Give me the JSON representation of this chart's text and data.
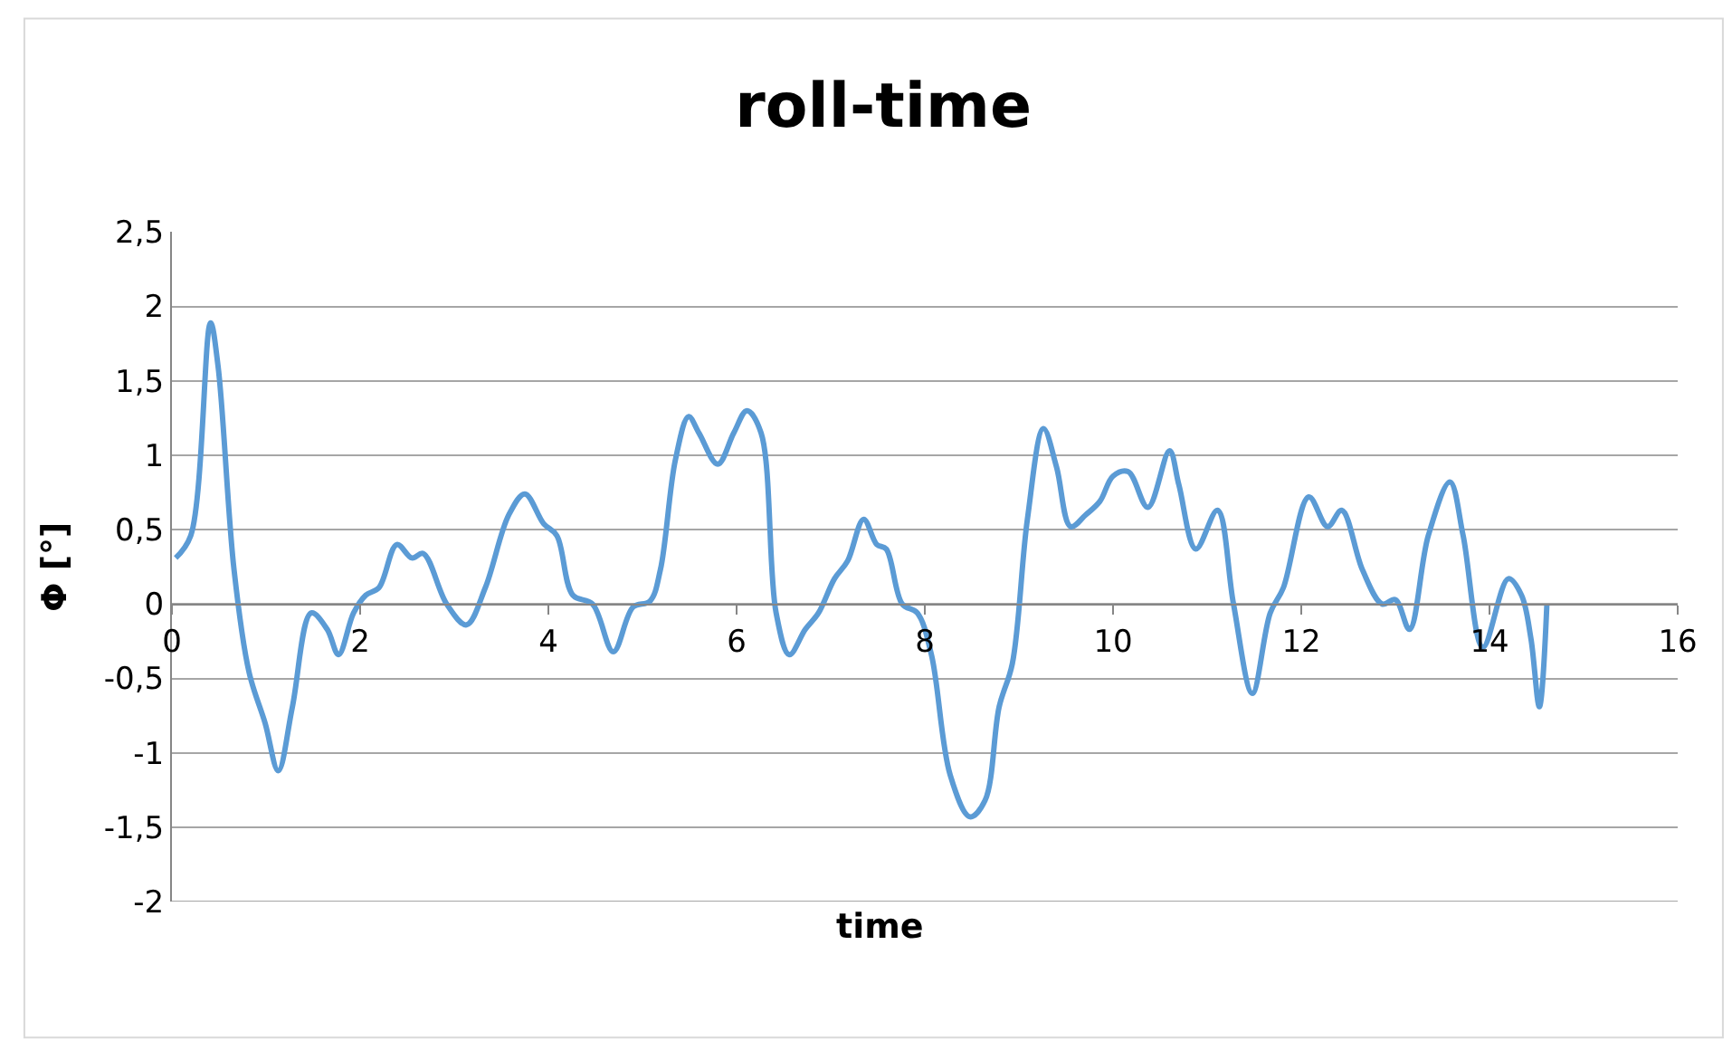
{
  "chart_data": {
    "type": "line",
    "title": "roll-time",
    "xlabel": "time",
    "ylabel": "Φ [°]",
    "xlim": [
      0,
      16
    ],
    "xticks": [
      0,
      2,
      4,
      6,
      8,
      10,
      12,
      14,
      16
    ],
    "ylim": [
      -2,
      2.5
    ],
    "yticks": [
      {
        "value": -2,
        "label": "-2"
      },
      {
        "value": -1.5,
        "label": "-1,5"
      },
      {
        "value": -1,
        "label": "-1"
      },
      {
        "value": -0.5,
        "label": "-0,5"
      },
      {
        "value": 0,
        "label": "0"
      },
      {
        "value": 0.5,
        "label": "0,5"
      },
      {
        "value": 1,
        "label": "1"
      },
      {
        "value": 1.5,
        "label": "1,5"
      },
      {
        "value": 2,
        "label": "2"
      },
      {
        "value": 2.5,
        "label": "2,5"
      }
    ],
    "grid": "y",
    "marker": "none",
    "line_style": "solid",
    "series": [
      {
        "color": "#5b9bd5",
        "x": [
          0.04,
          0.2,
          0.41,
          0.49,
          0.66,
          0.82,
          0.99,
          1.13,
          1.28,
          1.48,
          1.65,
          1.77,
          1.93,
          2.06,
          2.2,
          2.39,
          2.55,
          2.67,
          2.92,
          3.13,
          3.33,
          3.58,
          3.75,
          3.95,
          4.09,
          4.26,
          4.47,
          4.69,
          4.9,
          5.08,
          5.19,
          5.35,
          5.49,
          5.6,
          5.8,
          5.97,
          6.11,
          6.26,
          6.42,
          6.56,
          6.73,
          6.87,
          7.04,
          7.18,
          7.35,
          7.49,
          7.59,
          7.76,
          7.92,
          8.07,
          8.27,
          8.48,
          8.64,
          8.79,
          8.93,
          9.09,
          9.26,
          9.4,
          9.55,
          9.71,
          9.86,
          10.0,
          10.16,
          10.37,
          10.6,
          10.7,
          10.88,
          11.11,
          11.28,
          11.48,
          11.67,
          11.81,
          12.08,
          12.28,
          12.43,
          12.65,
          12.86,
          13.0,
          13.15,
          13.35,
          13.58,
          13.72,
          13.93,
          14.2,
          14.34,
          14.44,
          14.53,
          14.61
        ],
        "values": [
          0.31,
          0.46,
          1.89,
          1.6,
          0.23,
          -0.46,
          -0.8,
          -1.12,
          -0.69,
          -0.06,
          -0.17,
          -0.34,
          -0.06,
          0.06,
          0.11,
          0.4,
          0.31,
          0.34,
          0,
          -0.14,
          0.11,
          0.6,
          0.74,
          0.54,
          0.46,
          0.06,
          0,
          -0.32,
          -0.02,
          0.02,
          0.23,
          0.97,
          1.26,
          1.15,
          0.94,
          1.15,
          1.3,
          1.15,
          -0.06,
          -0.34,
          -0.17,
          -0.06,
          0.17,
          0.29,
          0.57,
          0.4,
          0.37,
          0,
          -0.06,
          -0.34,
          -1.15,
          -1.43,
          -1.32,
          -0.69,
          -0.4,
          0.57,
          1.18,
          0.92,
          0.52,
          0.6,
          0.69,
          0.86,
          0.89,
          0.65,
          1.03,
          0.8,
          0.37,
          0.63,
          0,
          -0.6,
          -0.06,
          0.11,
          0.72,
          0.52,
          0.63,
          0.23,
          0,
          0.03,
          -0.17,
          0.46,
          0.82,
          0.46,
          -0.29,
          0.17,
          0.06,
          -0.23,
          -0.69,
          0
        ]
      }
    ]
  }
}
